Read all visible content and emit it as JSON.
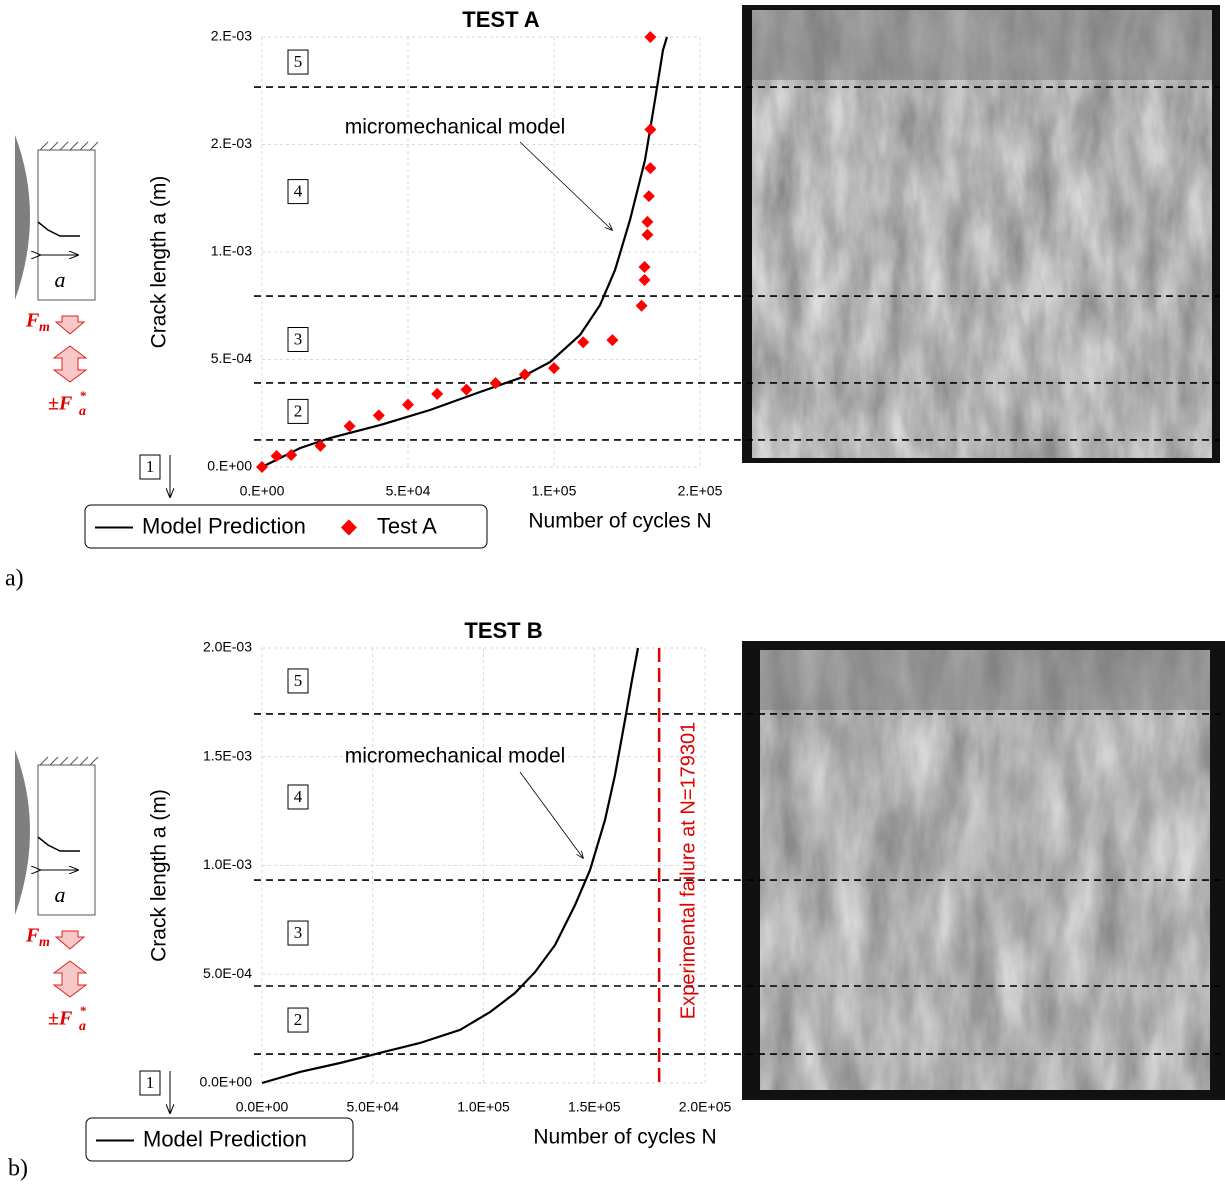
{
  "chart_data": [
    {
      "type": "line",
      "title": "TEST A",
      "panel_label": "a)",
      "xlabel": "Number of cycles N",
      "ylabel": "Crack length a (m)",
      "xlim": [
        0,
        150000
      ],
      "ylim": [
        0,
        0.002
      ],
      "xticks": [
        {
          "value": 0,
          "label": "0.E+00"
        },
        {
          "value": 50000,
          "label": "5.E+04"
        },
        {
          "value": 100000,
          "label": "1.E+05"
        },
        {
          "value": 150000,
          "label": "2.E+05"
        }
      ],
      "yticks": [
        {
          "value": 0,
          "label": "0.E+00"
        },
        {
          "value": 0.0005,
          "label": "5.E-04"
        },
        {
          "value": 0.001,
          "label": "1.E-03"
        },
        {
          "value": 0.0015,
          "label": "2.E-03"
        },
        {
          "value": 0.002,
          "label": "2.E-03"
        }
      ],
      "grid": true,
      "series": [
        {
          "name": "Model Prediction",
          "type": "line",
          "color": "#000000",
          "x": [
            0,
            13014,
            23288,
            40411,
            57534,
            74658,
            88356,
            98630,
            108904,
            115753,
            120890,
            126027,
            131164,
            134589,
            137329,
            138699
          ],
          "values": [
            0,
            8.8e-05,
            0.000135,
            0.000195,
            0.000265,
            0.000349,
            0.000414,
            0.000488,
            0.000614,
            0.000753,
            0.000916,
            0.001149,
            0.001428,
            0.001707,
            0.00194,
            0.002
          ]
        },
        {
          "name": "Test A",
          "type": "scatter",
          "color": "#ff0000",
          "x": [
            0,
            5000,
            10000,
            20000,
            30000,
            40000,
            50000,
            60000,
            70000,
            80000,
            90000,
            100000,
            110000,
            120000,
            130000,
            131000,
            131000,
            132000,
            132000,
            132500,
            133000,
            133000,
            133000
          ],
          "values": [
            0,
            5.1e-05,
            5.6e-05,
            9.8e-05,
            0.00019,
            0.00024,
            0.00029,
            0.00034,
            0.00036,
            0.00039,
            0.00043,
            0.00046,
            0.00058,
            0.00059,
            0.00075,
            0.00087,
            0.00093,
            0.00108,
            0.00114,
            0.00126,
            0.00139,
            0.00157,
            0.002
          ]
        }
      ],
      "annotation": "micromechanical model",
      "regions": {
        "labels": [
          "1",
          "2",
          "3",
          "4",
          "5"
        ],
        "boundaries": [
          0.000126,
          0.000391,
          0.000795,
          0.001767
        ]
      },
      "schematic": {
        "length": "a",
        "mean_force": "F",
        "mean_force_sub": "m",
        "amp_force": "±F",
        "amp_force_sub": "a",
        "amp_force_sup": "*"
      }
    },
    {
      "type": "line",
      "title": "TEST B",
      "panel_label": "b)",
      "xlabel": "Number of cycles N",
      "ylabel": "Crack length a (m)",
      "xlim": [
        0,
        200000
      ],
      "ylim": [
        0,
        0.002
      ],
      "xticks": [
        {
          "value": 0,
          "label": "0.0E+00"
        },
        {
          "value": 50000,
          "label": "5.0E+04"
        },
        {
          "value": 100000,
          "label": "1.0E+05"
        },
        {
          "value": 150000,
          "label": "1.5E+05"
        },
        {
          "value": 200000,
          "label": "2.0E+05"
        }
      ],
      "yticks": [
        {
          "value": 0,
          "label": "0.0E+00"
        },
        {
          "value": 0.0005,
          "label": "5.0E-04"
        },
        {
          "value": 0.001,
          "label": "1.0E-03"
        },
        {
          "value": 0.0015,
          "label": "1.5E-03"
        },
        {
          "value": 0.002,
          "label": "2.0E-03"
        }
      ],
      "grid": true,
      "series": [
        {
          "name": "Model Prediction",
          "type": "line",
          "color": "#000000",
          "x": [
            0,
            17156,
            35214,
            49661,
            71332,
            89391,
            102935,
            114221,
            123251,
            132280,
            141309,
            148081,
            154853,
            159368,
            163883,
            167043,
            169752
          ],
          "values": [
            0,
            5.1e-05,
            9.2e-05,
            0.000129,
            0.000184,
            0.000244,
            0.000326,
            0.000414,
            0.00051,
            0.000634,
            0.000818,
            0.000979,
            0.001209,
            0.001416,
            0.001669,
            0.001853,
            0.002
          ]
        }
      ],
      "annotation": "micromechanical model",
      "failure": {
        "x": 179301,
        "label": "Experimental failure at N=179301",
        "color": "#e00000"
      },
      "regions": {
        "labels": [
          "1",
          "2",
          "3",
          "4",
          "5"
        ],
        "boundaries": [
          0.000133,
          0.000446,
          0.000933,
          0.001697
        ]
      },
      "schematic": {
        "length": "a",
        "mean_force": "F",
        "mean_force_sub": "m",
        "amp_force": "±F",
        "amp_force_sub": "a",
        "amp_force_sup": "*"
      }
    }
  ]
}
